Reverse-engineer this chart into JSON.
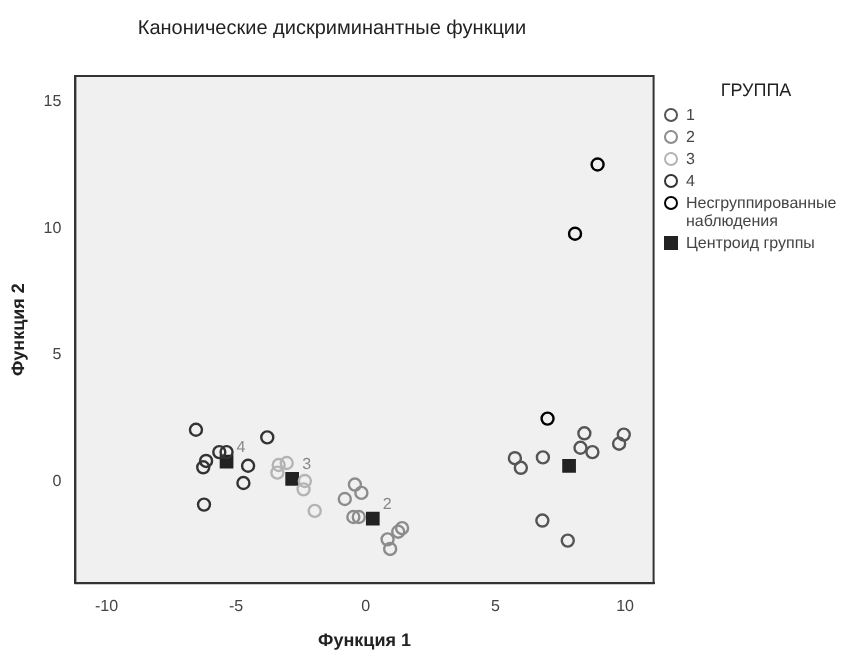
{
  "chart_data": {
    "type": "scatter",
    "title": "Канонические дискриминантные функции",
    "xlabel": "Функция 1",
    "ylabel": "Функция 2",
    "legend_title": "ГРУППА",
    "legend": "right",
    "grid": false,
    "xlim": [
      -11.2,
      11.1
    ],
    "xticks": [
      -10,
      -5,
      0,
      5,
      10
    ],
    "ylim": [
      -4,
      16
    ],
    "yticks": [
      0,
      5,
      10,
      15
    ],
    "series": [
      {
        "name": "1",
        "color": "#555555",
        "marker": "circle",
        "x": [
          5.75,
          5.98,
          6.83,
          8.43,
          8.28,
          8.74,
          9.77,
          9.95,
          6.81,
          7.79
        ],
        "values": [
          0.93,
          0.55,
          0.96,
          1.91,
          1.34,
          1.17,
          1.5,
          1.86,
          -1.53,
          -2.32
        ]
      },
      {
        "name": "2",
        "color": "#8c8c8c",
        "marker": "circle",
        "x": [
          -0.42,
          -0.17,
          -0.81,
          -0.48,
          -0.27,
          0.84,
          0.94,
          1.25,
          1.4
        ],
        "values": [
          -0.11,
          -0.44,
          -0.68,
          -1.39,
          -1.39,
          -2.27,
          -2.65,
          -1.97,
          -1.83
        ]
      },
      {
        "name": "3",
        "color": "#b4b4b4",
        "marker": "circle",
        "x": [
          -3.36,
          -3.05,
          -3.41,
          -2.35,
          -2.4,
          -1.97
        ],
        "values": [
          0.66,
          0.74,
          0.36,
          0.03,
          -0.3,
          -1.15
        ]
      },
      {
        "name": "4",
        "color": "#333333",
        "marker": "circle",
        "x": [
          -6.55,
          -6.16,
          -6.27,
          -5.65,
          -5.37,
          -4.54,
          -4.72,
          -3.8,
          -6.24
        ],
        "values": [
          2.05,
          0.82,
          0.57,
          1.17,
          1.17,
          0.63,
          -0.05,
          1.75,
          -0.9
        ]
      },
      {
        "name": "Несгруппированные наблюдения",
        "color": "#000000",
        "marker": "circle",
        "x": [
          8.94,
          8.07,
          7.01
        ],
        "values": [
          12.51,
          9.78,
          2.49
        ]
      },
      {
        "name": "Центроид группы",
        "color": "#222222",
        "marker": "square",
        "x": [
          7.84,
          0.27,
          -2.84,
          -5.37
        ],
        "values": [
          0.63,
          -1.45,
          0.11,
          0.79
        ]
      }
    ],
    "annotations": [
      {
        "text": "4",
        "x": -5.37,
        "y": 0.79
      },
      {
        "text": "3",
        "x": -2.84,
        "y": 0.11
      },
      {
        "text": "2",
        "x": 0.27,
        "y": -1.45
      }
    ]
  }
}
